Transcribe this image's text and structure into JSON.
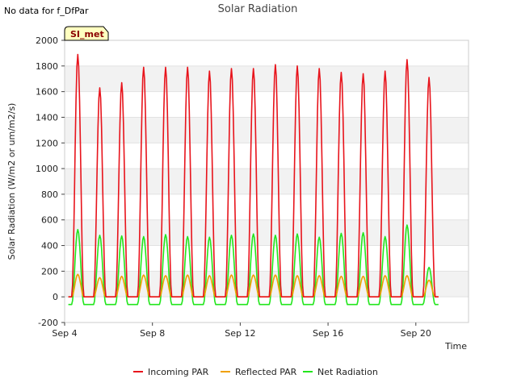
{
  "no_data_note": "No data for f_DfPar",
  "site_badge": "SI_met",
  "chart_data": {
    "type": "line",
    "title": "Solar Radiation",
    "xlabel": "Time",
    "ylabel": "Solar Radiation (W/m2 or um/m2/s)",
    "xlim": [
      4.0,
      22.4
    ],
    "ylim": [
      -200,
      2000
    ],
    "yticks": [
      -200,
      0,
      200,
      400,
      600,
      800,
      1000,
      1200,
      1400,
      1600,
      1800,
      2000
    ],
    "xticks": [
      {
        "value": 4,
        "label": "Sep 4"
      },
      {
        "value": 8,
        "label": "Sep 8"
      },
      {
        "value": 12,
        "label": "Sep 12"
      },
      {
        "value": 16,
        "label": "Sep 16"
      },
      {
        "value": 20,
        "label": "Sep 20"
      }
    ],
    "grid": "horizontal-bands",
    "legend_position": "bottom",
    "peak_days": [
      4.6,
      5.6,
      6.6,
      7.6,
      8.6,
      9.6,
      10.6,
      11.6,
      12.6,
      13.6,
      14.6,
      15.6,
      16.6,
      17.6,
      18.6,
      19.6,
      20.6
    ],
    "series": [
      {
        "name": "Incoming PAR",
        "color": "#e8141c",
        "night_value": 0,
        "peaks": [
          1890,
          1630,
          1670,
          1790,
          1790,
          1790,
          1760,
          1780,
          1780,
          1810,
          1800,
          1780,
          1750,
          1740,
          1760,
          1850,
          1710
        ]
      },
      {
        "name": "Reflected PAR",
        "color": "#f0a000",
        "night_value": 0,
        "peaks": [
          175,
          150,
          160,
          170,
          165,
          170,
          165,
          170,
          170,
          170,
          165,
          165,
          160,
          160,
          165,
          165,
          130
        ]
      },
      {
        "name": "Net Radiation",
        "color": "#22e61c",
        "night_value": -60,
        "peaks": [
          525,
          480,
          475,
          470,
          485,
          470,
          465,
          480,
          490,
          480,
          490,
          465,
          495,
          500,
          470,
          560,
          230
        ]
      }
    ]
  }
}
